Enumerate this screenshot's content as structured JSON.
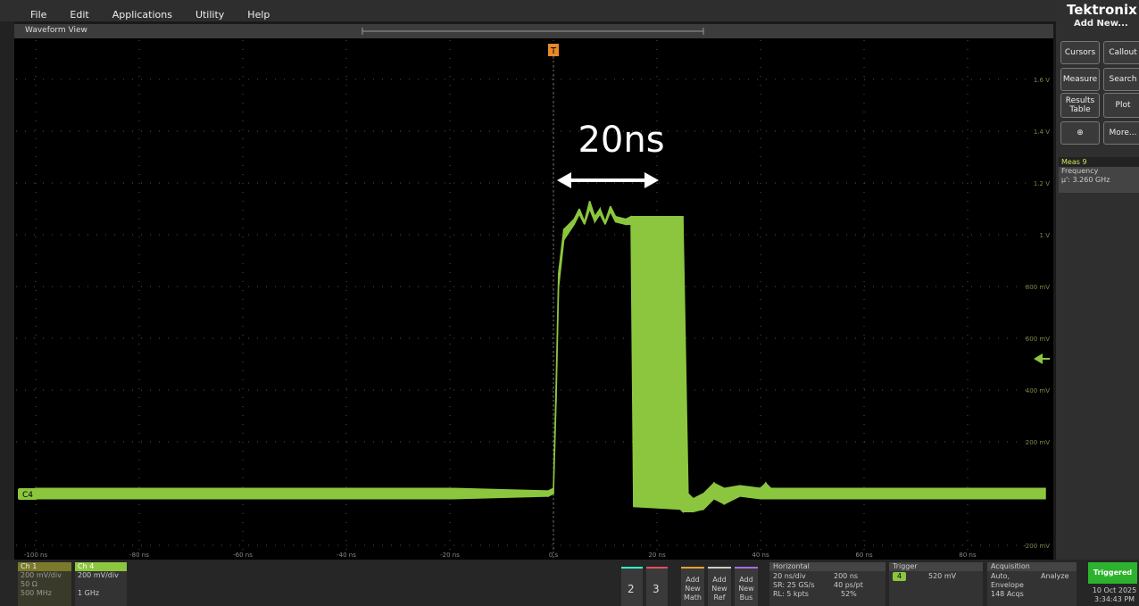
{
  "menu": [
    "File",
    "Edit",
    "Applications",
    "Utility",
    "Help"
  ],
  "view_title": "Waveform View",
  "waveform": {
    "channel": "C4",
    "color": "#8cc63f",
    "annotation": "20ns",
    "x": [
      -100,
      -60,
      -20,
      -1,
      0,
      0.5,
      1,
      2,
      4,
      5,
      6,
      7,
      8,
      9,
      10,
      11,
      12,
      14,
      15,
      15.5,
      24.5,
      25,
      26,
      27,
      29,
      31,
      33,
      36,
      40,
      41,
      42,
      60,
      95
    ],
    "max": [
      0.02,
      0.02,
      0.02,
      0.01,
      0.02,
      0.4,
      0.85,
      1.02,
      1.06,
      1.1,
      1.05,
      1.13,
      1.07,
      1.1,
      1.05,
      1.11,
      1.07,
      1.06,
      1.07,
      1.07,
      1.07,
      1.07,
      0.0,
      -0.02,
      0.0,
      0.04,
      0.02,
      0.03,
      0.02,
      0.04,
      0.02,
      0.02,
      0.02
    ],
    "min": [
      -0.02,
      -0.02,
      -0.02,
      -0.01,
      0.0,
      0.35,
      0.8,
      0.98,
      1.04,
      1.08,
      1.04,
      1.1,
      1.05,
      1.08,
      1.04,
      1.09,
      1.05,
      1.04,
      1.04,
      -0.05,
      -0.06,
      -0.07,
      -0.07,
      -0.07,
      -0.06,
      -0.02,
      -0.04,
      -0.01,
      -0.02,
      -0.02,
      -0.02,
      -0.02,
      -0.02
    ],
    "xticks": [
      {
        "value": -100,
        "label": "-100 ns"
      },
      {
        "value": -80,
        "label": "-80 ns"
      },
      {
        "value": -60,
        "label": "-60 ns"
      },
      {
        "value": -40,
        "label": "-40 ns"
      },
      {
        "value": -20,
        "label": "-20 ns"
      },
      {
        "value": 0,
        "label": "0 s"
      },
      {
        "value": 20,
        "label": "20 ns"
      },
      {
        "value": 40,
        "label": "40 ns"
      },
      {
        "value": 60,
        "label": "60 ns"
      },
      {
        "value": 80,
        "label": "80 ns"
      }
    ],
    "yticks": [
      {
        "value": 1.6,
        "label": "1.6 V"
      },
      {
        "value": 1.4,
        "label": "1.4 V"
      },
      {
        "value": 1.2,
        "label": "1.2 V"
      },
      {
        "value": 1,
        "label": "1 V"
      },
      {
        "value": 0.8,
        "label": "800 mV"
      },
      {
        "value": 0.6,
        "label": "600 mV"
      },
      {
        "value": 0.4,
        "label": "400 mV"
      },
      {
        "value": 0.2,
        "label": "200 mV"
      },
      {
        "value": -0.2,
        "label": "-200 mV"
      }
    ]
  },
  "side_panel": {
    "brand": "Tektronix",
    "add_new": "Add New...",
    "buttons": [
      "Cursors",
      "Callout",
      "Measure",
      "Search",
      "Results Table",
      "Plot",
      "More..."
    ],
    "measurement": {
      "name": "Meas 9",
      "type": "Frequency",
      "value": "µ': 3.260 GHz"
    }
  },
  "bottom_bar": {
    "ch1": {
      "name": "Ch 1",
      "scale": "200 mV/div",
      "impedance": "50 Ω",
      "bandwidth": "500 MHz"
    },
    "ch4": {
      "name": "Ch 4",
      "scale": "200 mV/div",
      "bandwidth": "1 GHz"
    },
    "channels": [
      "2",
      "3"
    ],
    "add": [
      "Add New Math",
      "Add New Ref",
      "Add New Bus"
    ],
    "horizontal": {
      "title": "Horizontal",
      "scale": "20 ns/div",
      "length": "200 ns",
      "sample_rate": "SR: 25 GS/s",
      "resolution": "40 ps/pt",
      "record": "RL: 5 kpts",
      "position": "52%"
    },
    "trigger": {
      "title": "Trigger",
      "source": "4",
      "level": "520 mV"
    },
    "acquisition": {
      "title": "Acquisition",
      "mode": "Auto,",
      "analyze": "Analyze",
      "type": "Envelope",
      "count": "148 Acqs"
    },
    "status": "Triggered",
    "date": "10 Oct 2025",
    "time": "3:34:43 PM"
  }
}
